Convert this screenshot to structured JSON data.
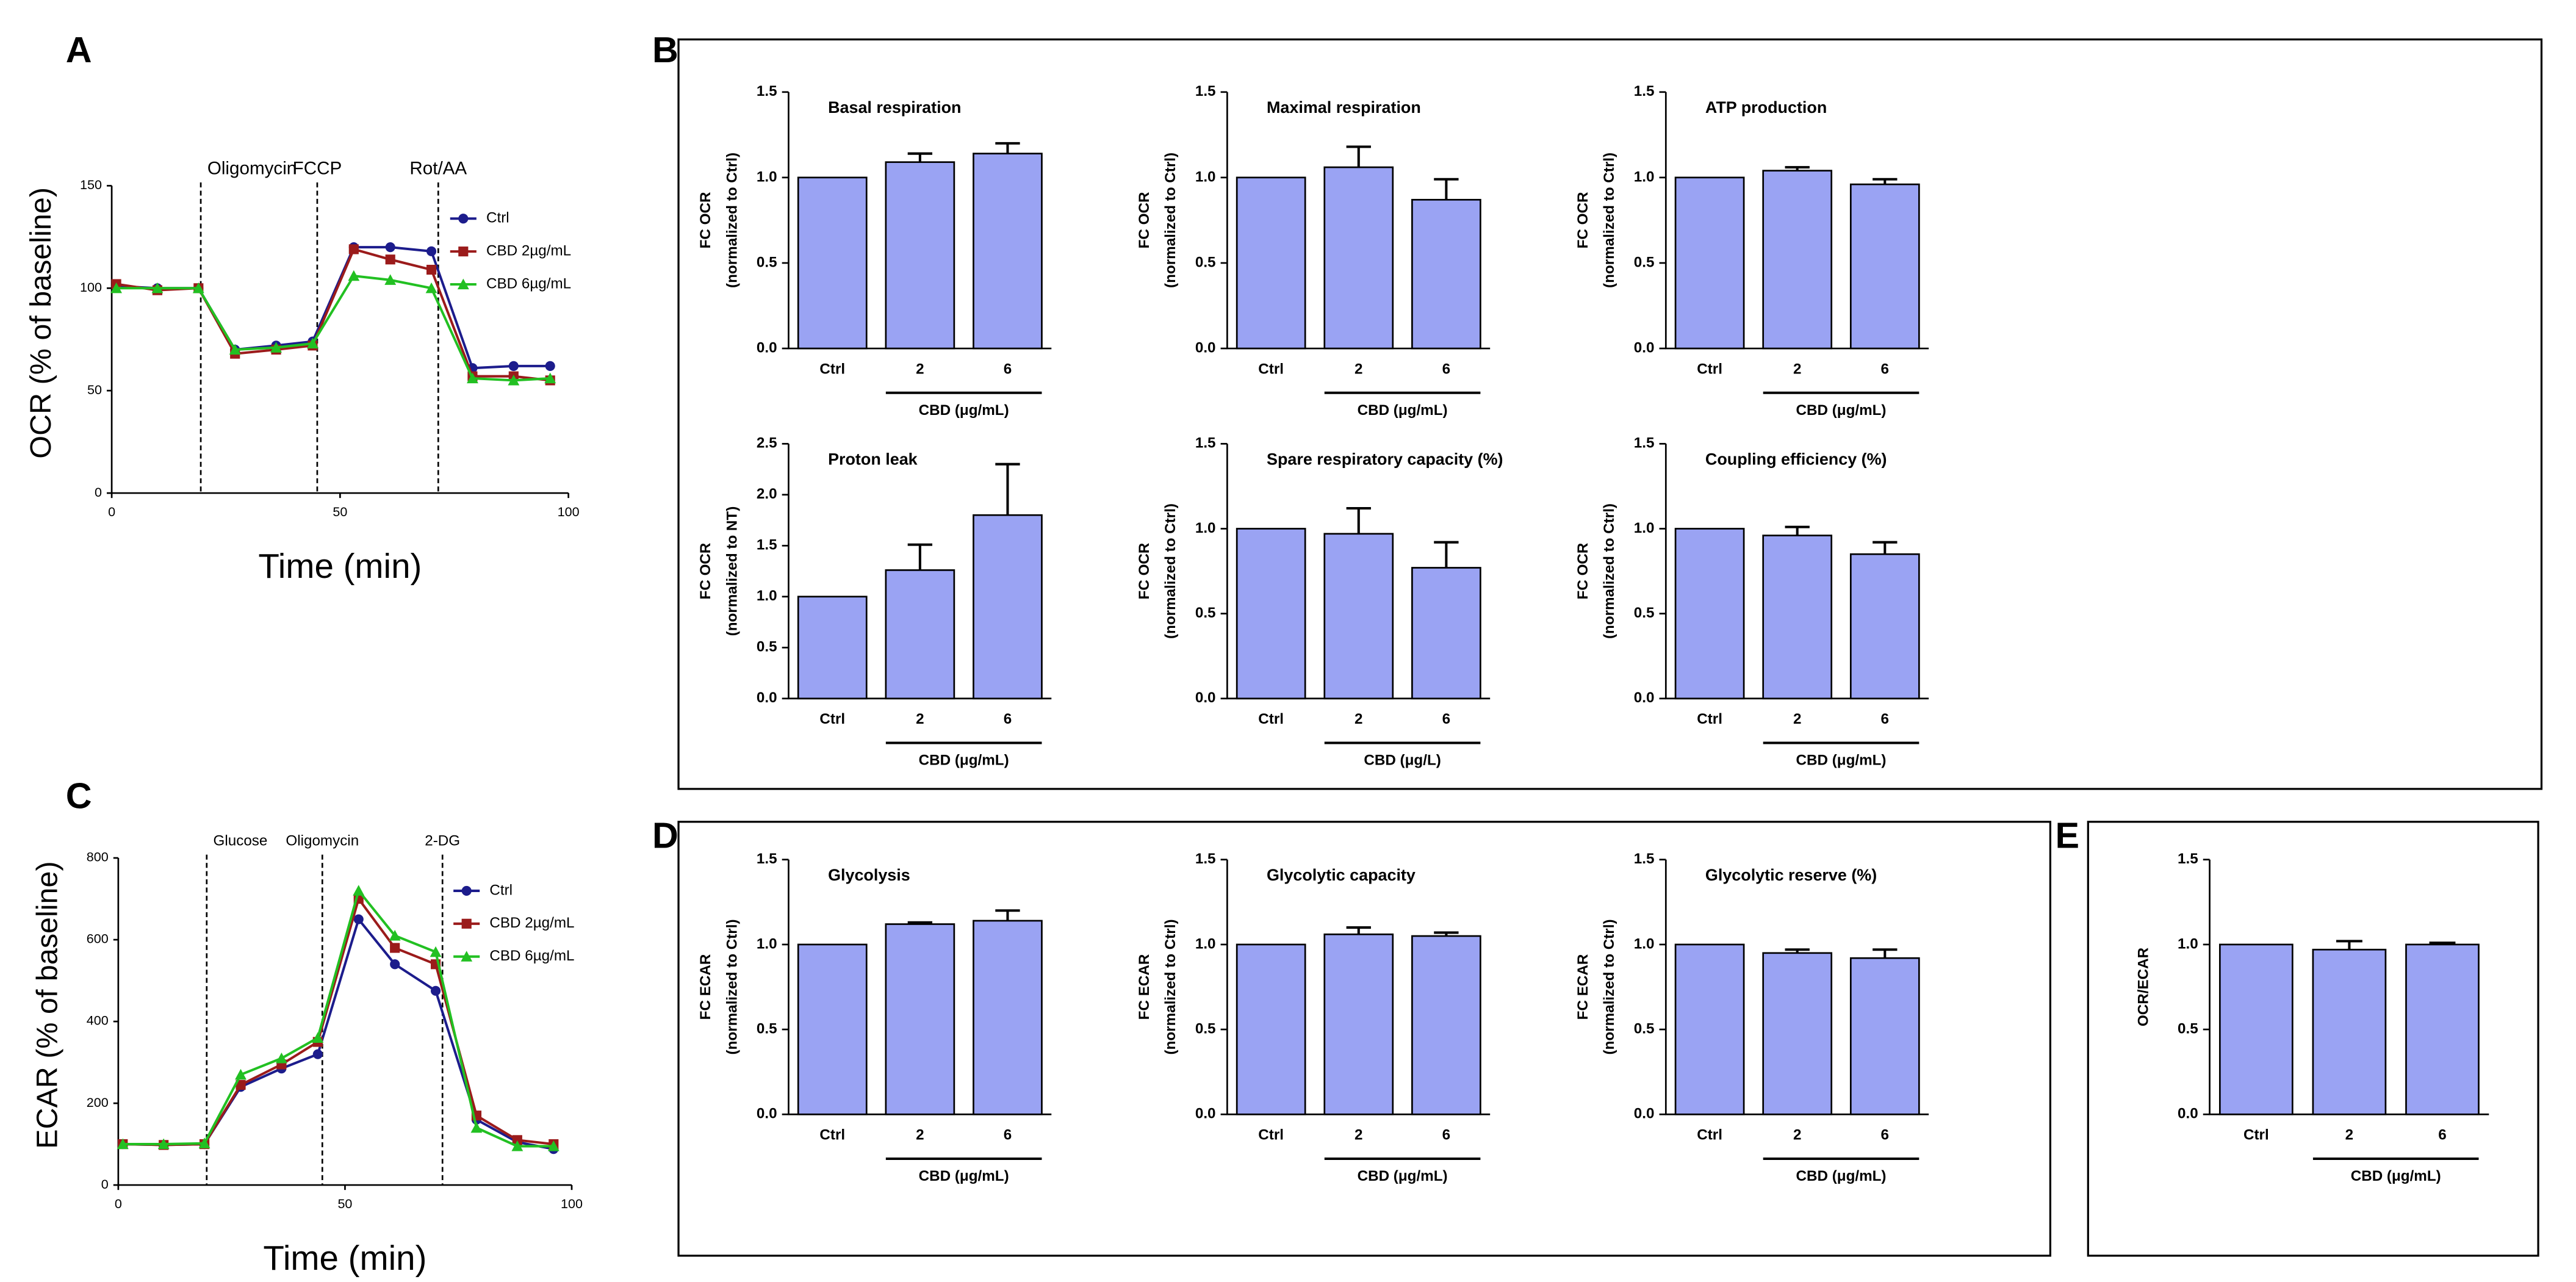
{
  "chart_data": [
    {
      "type": "line",
      "panel": "A",
      "ylabel": "OCR (% of baseline)",
      "xlabel": "Time (min)",
      "x": [
        1,
        10,
        19,
        27,
        36,
        44,
        53,
        61,
        70,
        79,
        88,
        96
      ],
      "series": [
        {
          "name": "Ctrl",
          "color": "#1c1c8c",
          "values": [
            101,
            100,
            100,
            70,
            72,
            74,
            120,
            120,
            118,
            61,
            62,
            62
          ]
        },
        {
          "name": "CBD 2µg/mL",
          "color": "#9b1b1b",
          "values": [
            102,
            99,
            100,
            68,
            70,
            72,
            119,
            114,
            109,
            57,
            57,
            55
          ]
        },
        {
          "name": "CBD 6µg/mL",
          "color": "#22c022",
          "values": [
            100,
            100,
            100,
            70,
            71,
            73,
            106,
            104,
            100,
            56,
            55,
            56
          ]
        }
      ],
      "events": [
        {
          "x": 19.5,
          "label": "Oligomycin"
        },
        {
          "x": 45,
          "label": "FCCP"
        },
        {
          "x": 71.5,
          "label": "Rot/AA"
        }
      ],
      "xlim": [
        0,
        100
      ],
      "xticks": [
        0,
        50,
        100
      ],
      "ylim": [
        0,
        150
      ],
      "yticks": [
        0,
        50,
        100,
        150
      ],
      "legend": "upper right"
    },
    {
      "type": "bar",
      "panel": "B",
      "title": "Basal respiration",
      "ylabel": [
        "FC OCR",
        "(normalized to Ctrl)"
      ],
      "categories": [
        "Ctrl",
        "2",
        "6"
      ],
      "group_label": "CBD (μg/mL)",
      "values": [
        1.0,
        1.09,
        1.14
      ],
      "errors": [
        null,
        0.05,
        0.06
      ],
      "color": "#9aa3f3",
      "ylim": [
        0,
        1.5
      ],
      "yticks": [
        {
          "value": 0,
          "label": "0.0"
        },
        {
          "value": 0.5,
          "label": "0.5"
        },
        {
          "value": 1,
          "label": "1.0"
        },
        {
          "value": 1.5,
          "label": "1.5"
        }
      ]
    },
    {
      "type": "bar",
      "title": "Maximal  respiration",
      "ylabel": [
        "FC OCR",
        "(normalized to Ctrl)"
      ],
      "categories": [
        "Ctrl",
        "2",
        "6"
      ],
      "group_label": "CBD (μg/mL)",
      "values": [
        1.0,
        1.06,
        0.87
      ],
      "errors": [
        null,
        0.12,
        0.12
      ],
      "color": "#9aa3f3",
      "ylim": [
        0,
        1.5
      ],
      "yticks": [
        {
          "value": 0,
          "label": "0.0"
        },
        {
          "value": 0.5,
          "label": "0.5"
        },
        {
          "value": 1,
          "label": "1.0"
        },
        {
          "value": 1.5,
          "label": "1.5"
        }
      ]
    },
    {
      "type": "bar",
      "title": "ATP  production",
      "ylabel": [
        "FC OCR",
        "(normalized to Ctrl)"
      ],
      "categories": [
        "Ctrl",
        "2",
        "6"
      ],
      "group_label": "CBD (μg/mL)",
      "values": [
        1.0,
        1.04,
        0.96
      ],
      "errors": [
        null,
        0.02,
        0.03
      ],
      "color": "#9aa3f3",
      "ylim": [
        0,
        1.5
      ],
      "yticks": [
        {
          "value": 0,
          "label": "0.0"
        },
        {
          "value": 0.5,
          "label": "0.5"
        },
        {
          "value": 1,
          "label": "1.0"
        },
        {
          "value": 1.5,
          "label": "1.5"
        }
      ]
    },
    {
      "type": "bar",
      "title": "Proton leak",
      "ylabel": [
        "FC OCR",
        "(normalized to NT)"
      ],
      "categories": [
        "Ctrl",
        "2",
        "6"
      ],
      "group_label": "CBD (μg/mL)",
      "values": [
        1.0,
        1.26,
        1.8
      ],
      "errors": [
        null,
        0.25,
        0.5
      ],
      "color": "#9aa3f3",
      "ylim": [
        0,
        2.5
      ],
      "yticks": [
        {
          "value": 0,
          "label": "0.0"
        },
        {
          "value": 0.5,
          "label": "0.5"
        },
        {
          "value": 1,
          "label": "1.0"
        },
        {
          "value": 1.5,
          "label": "1.5"
        },
        {
          "value": 2,
          "label": "2.0"
        },
        {
          "value": 2.5,
          "label": "2.5"
        }
      ]
    },
    {
      "type": "bar",
      "title": "Spare respiratory capacity (%)",
      "ylabel": [
        "FC OCR",
        "(normalized to Ctrl)"
      ],
      "categories": [
        "Ctrl",
        "2",
        "6"
      ],
      "group_label": "CBD (μg/L)",
      "values": [
        1.0,
        0.97,
        0.77
      ],
      "errors": [
        null,
        0.15,
        0.15
      ],
      "color": "#9aa3f3",
      "ylim": [
        0,
        1.5
      ],
      "yticks": [
        {
          "value": 0,
          "label": "0.0"
        },
        {
          "value": 0.5,
          "label": "0.5"
        },
        {
          "value": 1,
          "label": "1.0"
        },
        {
          "value": 1.5,
          "label": "1.5"
        }
      ]
    },
    {
      "type": "bar",
      "title": "Coupling efficiency (%)",
      "ylabel": [
        "FC OCR",
        "(normalized to Ctrl)"
      ],
      "categories": [
        "Ctrl",
        "2",
        "6"
      ],
      "group_label": "CBD (μg/mL)",
      "values": [
        1.0,
        0.96,
        0.85
      ],
      "errors": [
        null,
        0.05,
        0.07
      ],
      "color": "#9aa3f3",
      "ylim": [
        0,
        1.5
      ],
      "yticks": [
        {
          "value": 0,
          "label": "0.0"
        },
        {
          "value": 0.5,
          "label": "0.5"
        },
        {
          "value": 1,
          "label": "1.0"
        },
        {
          "value": 1.5,
          "label": "1.5"
        }
      ]
    },
    {
      "type": "line",
      "panel": "C",
      "ylabel": "ECAR (% of baseline)",
      "xlabel": "Time (min)",
      "x": [
        1,
        10,
        19,
        27,
        36,
        44,
        53,
        61,
        70,
        79,
        88,
        96
      ],
      "series": [
        {
          "name": "Ctrl",
          "color": "#1c1c8c",
          "values": [
            100,
            98,
            100,
            240,
            285,
            320,
            650,
            540,
            475,
            160,
            105,
            88
          ]
        },
        {
          "name": "CBD 2µg/mL",
          "color": "#9b1b1b",
          "values": [
            100,
            98,
            100,
            245,
            295,
            350,
            700,
            580,
            540,
            170,
            110,
            100
          ]
        },
        {
          "name": "CBD 6µg/mL",
          "color": "#22c022",
          "values": [
            100,
            100,
            102,
            270,
            310,
            360,
            720,
            610,
            570,
            140,
            95,
            95
          ]
        }
      ],
      "events": [
        {
          "x": 19.5,
          "label": "Glucose"
        },
        {
          "x": 45,
          "label": "Oligomycin"
        },
        {
          "x": 71.5,
          "label": "2-DG"
        }
      ],
      "xlim": [
        0,
        100
      ],
      "xticks": [
        0,
        50,
        100
      ],
      "ylim": [
        0,
        800
      ],
      "yticks": [
        0,
        200,
        400,
        600,
        800
      ],
      "legend": "upper right"
    },
    {
      "type": "bar",
      "panel": "D",
      "title": "Glycolysis",
      "ylabel": [
        "FC ECAR",
        "(normalized to Ctrl)"
      ],
      "categories": [
        "Ctrl",
        "2",
        "6"
      ],
      "group_label": "CBD (μg/mL)",
      "values": [
        1.0,
        1.12,
        1.14
      ],
      "errors": [
        null,
        0.01,
        0.06
      ],
      "color": "#9aa3f3",
      "ylim": [
        0,
        1.5
      ],
      "yticks": [
        {
          "value": 0,
          "label": "0.0"
        },
        {
          "value": 0.5,
          "label": "0.5"
        },
        {
          "value": 1,
          "label": "1.0"
        },
        {
          "value": 1.5,
          "label": "1.5"
        }
      ]
    },
    {
      "type": "bar",
      "title": "Glycolytic capacity",
      "ylabel": [
        "FC ECAR",
        "(normalized to Ctrl)"
      ],
      "categories": [
        "Ctrl",
        "2",
        "6"
      ],
      "group_label": "CBD (μg/mL)",
      "values": [
        1.0,
        1.06,
        1.05
      ],
      "errors": [
        null,
        0.04,
        0.02
      ],
      "color": "#9aa3f3",
      "ylim": [
        0,
        1.5
      ],
      "yticks": [
        {
          "value": 0,
          "label": "0.0"
        },
        {
          "value": 0.5,
          "label": "0.5"
        },
        {
          "value": 1,
          "label": "1.0"
        },
        {
          "value": 1.5,
          "label": "1.5"
        }
      ]
    },
    {
      "type": "bar",
      "title": "Glycolytic reserve (%)",
      "ylabel": [
        "FC ECAR",
        "(normalized to Ctrl)"
      ],
      "categories": [
        "Ctrl",
        "2",
        "6"
      ],
      "group_label": "CBD (μg/mL)",
      "values": [
        1.0,
        0.95,
        0.92
      ],
      "errors": [
        null,
        0.02,
        0.05
      ],
      "color": "#9aa3f3",
      "ylim": [
        0,
        1.5
      ],
      "yticks": [
        {
          "value": 0,
          "label": "0.0"
        },
        {
          "value": 0.5,
          "label": "0.5"
        },
        {
          "value": 1,
          "label": "1.0"
        },
        {
          "value": 1.5,
          "label": "1.5"
        }
      ]
    },
    {
      "type": "bar",
      "panel": "E",
      "ylabel": [
        "OCR/ECAR"
      ],
      "categories": [
        "Ctrl",
        "2",
        "6"
      ],
      "group_label": "CBD (μg/mL)",
      "values": [
        1.0,
        0.97,
        1.0
      ],
      "errors": [
        null,
        0.05,
        0.01
      ],
      "color": "#9aa3f3",
      "ylim": [
        0,
        1.5
      ],
      "yticks": [
        {
          "value": 0,
          "label": "0.0"
        },
        {
          "value": 0.5,
          "label": "0.5"
        },
        {
          "value": 1,
          "label": "1.0"
        },
        {
          "value": 1.5,
          "label": "1.5"
        }
      ]
    }
  ]
}
